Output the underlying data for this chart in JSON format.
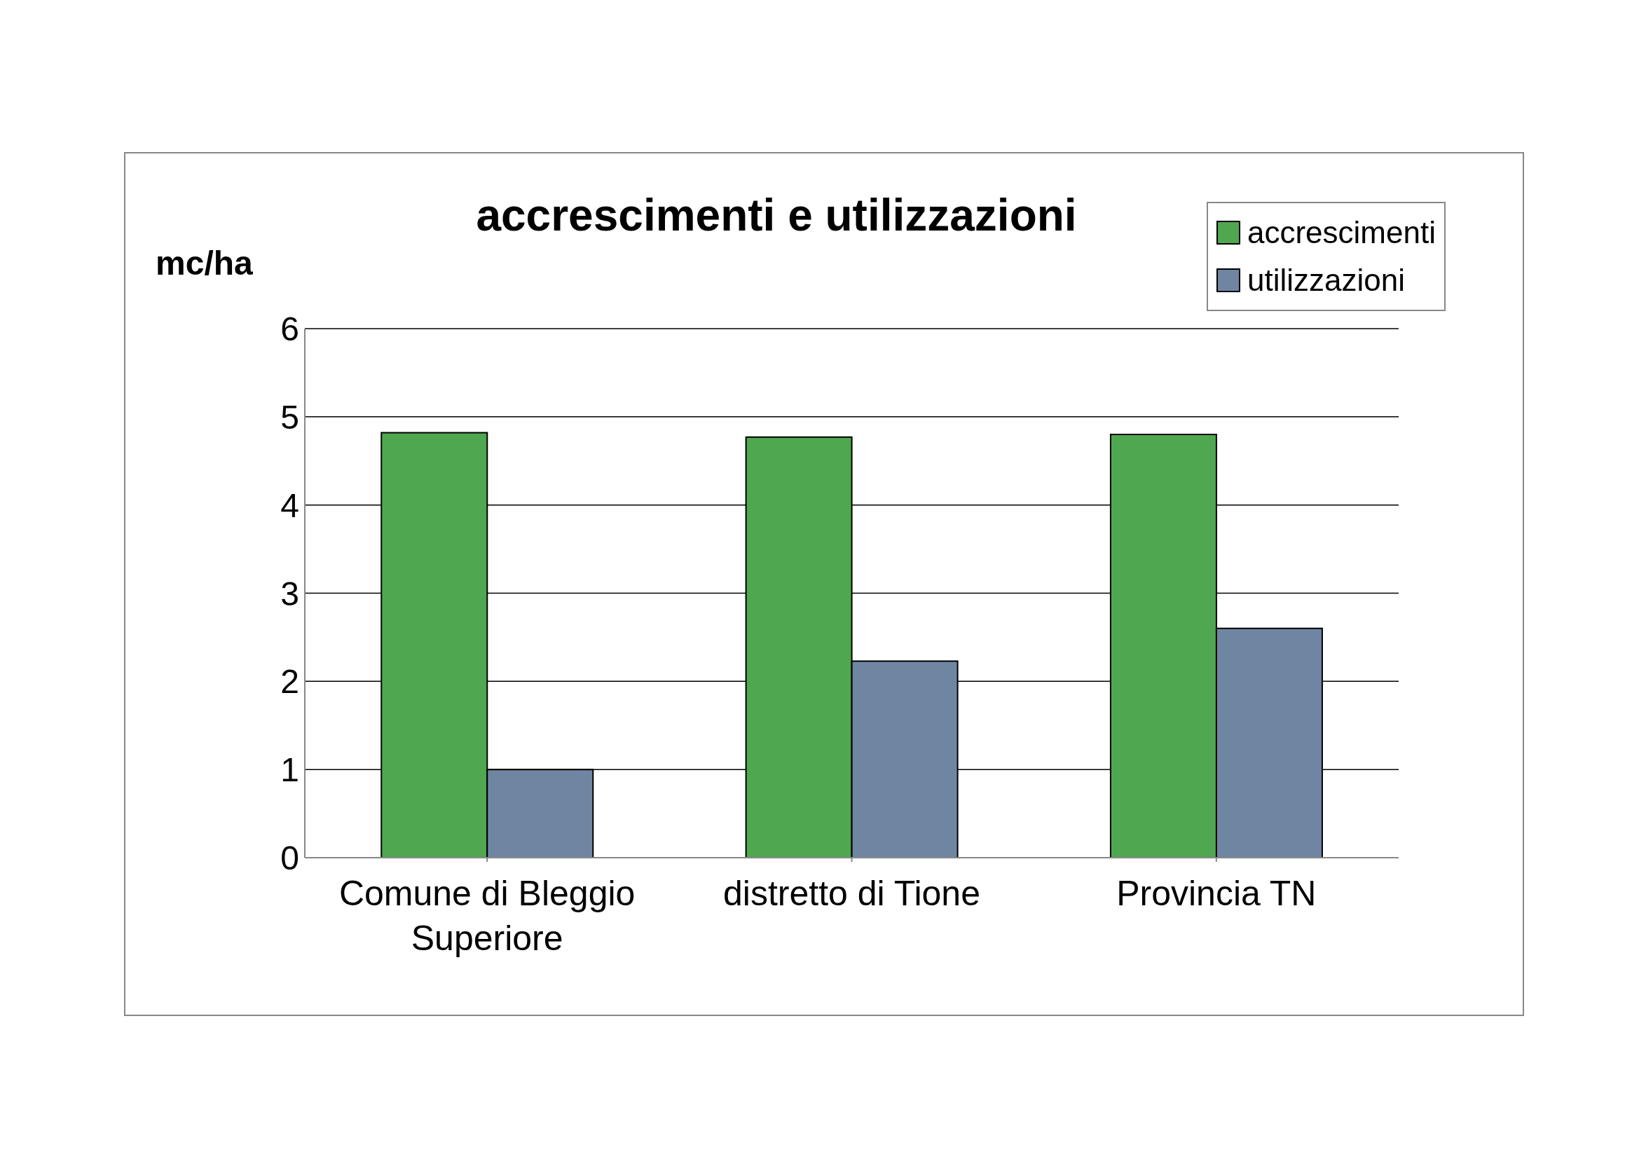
{
  "chart_data": {
    "type": "bar",
    "title": "accrescimenti e utilizzazioni",
    "ylabel": "mc/ha",
    "categories": [
      "Comune di Bleggio Superiore",
      "distretto di Tione",
      "Provincia TN"
    ],
    "series": [
      {
        "name": "accrescimenti",
        "color": "#4fa84f",
        "values": [
          4.82,
          4.77,
          4.8
        ]
      },
      {
        "name": "utilizzazioni",
        "color": "#6f86a3",
        "values": [
          1.0,
          2.23,
          2.6
        ]
      }
    ],
    "ylim": [
      0,
      6
    ],
    "yticks": [
      0,
      1,
      2,
      3,
      4,
      5,
      6
    ],
    "grid": "y",
    "legend": "top right"
  }
}
